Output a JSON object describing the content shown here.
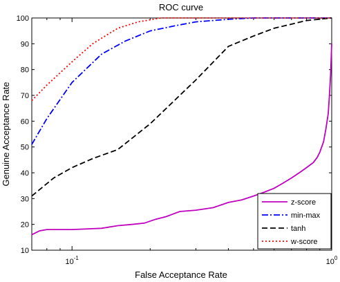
{
  "chart_data": {
    "type": "line",
    "title": "ROC curve",
    "xlabel": "False Acceptance Rate",
    "ylabel": "Genuine Acceptance Rate",
    "xscale": "log",
    "xlim": [
      0.07,
      1
    ],
    "ylim": [
      10,
      100
    ],
    "xticks": [
      {
        "value": 0.1,
        "base": "10",
        "exp": "-1"
      },
      {
        "value": 1,
        "base": "10",
        "exp": "0"
      }
    ],
    "yticks": [
      10,
      20,
      30,
      40,
      50,
      60,
      70,
      80,
      90,
      100
    ],
    "grid": false,
    "legend_position": "bottom-right",
    "series": [
      {
        "name": "z-score",
        "color": "#bf00bf",
        "dash": "solid",
        "x": [
          0.07,
          0.075,
          0.08,
          0.1,
          0.13,
          0.15,
          0.17,
          0.19,
          0.21,
          0.23,
          0.26,
          0.3,
          0.35,
          0.4,
          0.45,
          0.5,
          0.55,
          0.6,
          0.65,
          0.7,
          0.75,
          0.8,
          0.85,
          0.88,
          0.9,
          0.93,
          0.95,
          0.97,
          0.98,
          0.99,
          1.0
        ],
        "y": [
          16,
          17.5,
          18,
          18,
          18.5,
          19.5,
          20,
          20.5,
          22,
          23,
          25,
          25.5,
          26.5,
          28.5,
          29.5,
          31,
          32.5,
          34,
          36,
          38,
          40,
          42,
          44,
          46,
          48,
          52,
          57,
          63,
          70,
          78,
          90
        ]
      },
      {
        "name": "min-max",
        "color": "#0000ff",
        "dash": "dashdot",
        "x": [
          0.07,
          0.08,
          0.1,
          0.13,
          0.16,
          0.2,
          0.25,
          0.3,
          0.4,
          0.5,
          1.0
        ],
        "y": [
          51,
          61,
          75,
          86,
          91,
          95,
          97,
          98.5,
          99.5,
          100,
          100
        ]
      },
      {
        "name": "tanh",
        "color": "#000000",
        "dash": "dashed",
        "x": [
          0.07,
          0.085,
          0.1,
          0.12,
          0.15,
          0.2,
          0.3,
          0.4,
          0.5,
          0.6,
          0.8,
          1.0
        ],
        "y": [
          31,
          38,
          42,
          45.5,
          49,
          59,
          76,
          89,
          93,
          96,
          99,
          100
        ]
      },
      {
        "name": "w-score",
        "color": "#ff0000",
        "dash": "dotted",
        "x": [
          0.07,
          0.08,
          0.1,
          0.12,
          0.15,
          0.18,
          0.22,
          0.3,
          1.0
        ],
        "y": [
          68,
          74,
          83,
          90,
          96,
          98.5,
          100,
          100,
          100
        ]
      }
    ]
  }
}
